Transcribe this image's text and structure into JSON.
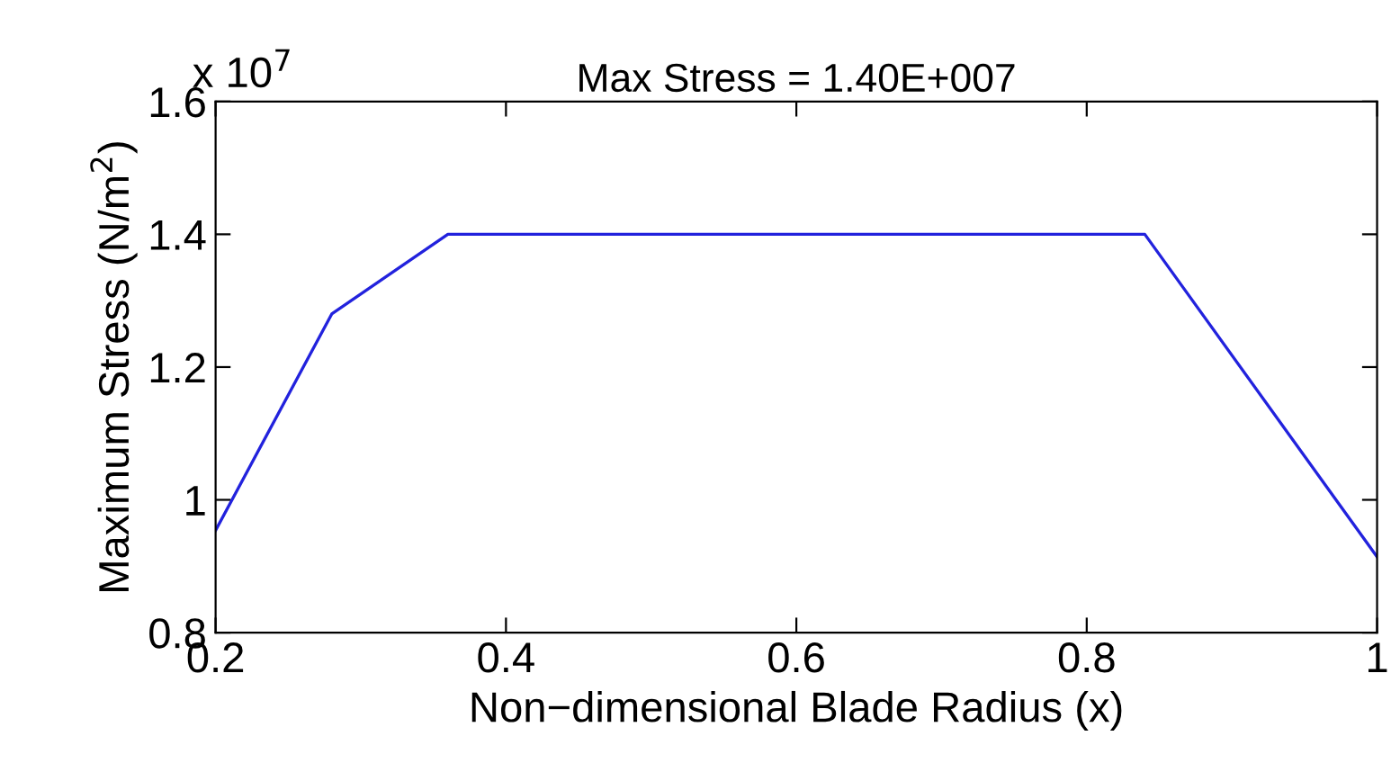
{
  "chart_data": {
    "type": "line",
    "title": "Max Stress = 1.40E+007",
    "xlabel": "Non−dimensional Blade Radius (x)",
    "ylabel": "Maximum Stress (N/m$^{2}$)",
    "annotations": [
      "x 10$^{7}$"
    ],
    "x": [
      0.2,
      0.28,
      0.36,
      0.84,
      1.0
    ],
    "series": [
      {
        "color": "#2222dd",
        "values": [
          0.954,
          1.28,
          1.4,
          1.4,
          0.914
        ]
      }
    ],
    "xlim": [
      0.2,
      1.0
    ],
    "xticks": [
      0.2,
      0.4,
      0.6,
      0.8,
      1
    ],
    "ylim": [
      0.8,
      1.6
    ],
    "yticks": [
      0.8,
      1,
      1.2,
      1.4,
      1.6
    ],
    "grid": false,
    "legend": false,
    "marker": "none",
    "line_style": "solid"
  }
}
